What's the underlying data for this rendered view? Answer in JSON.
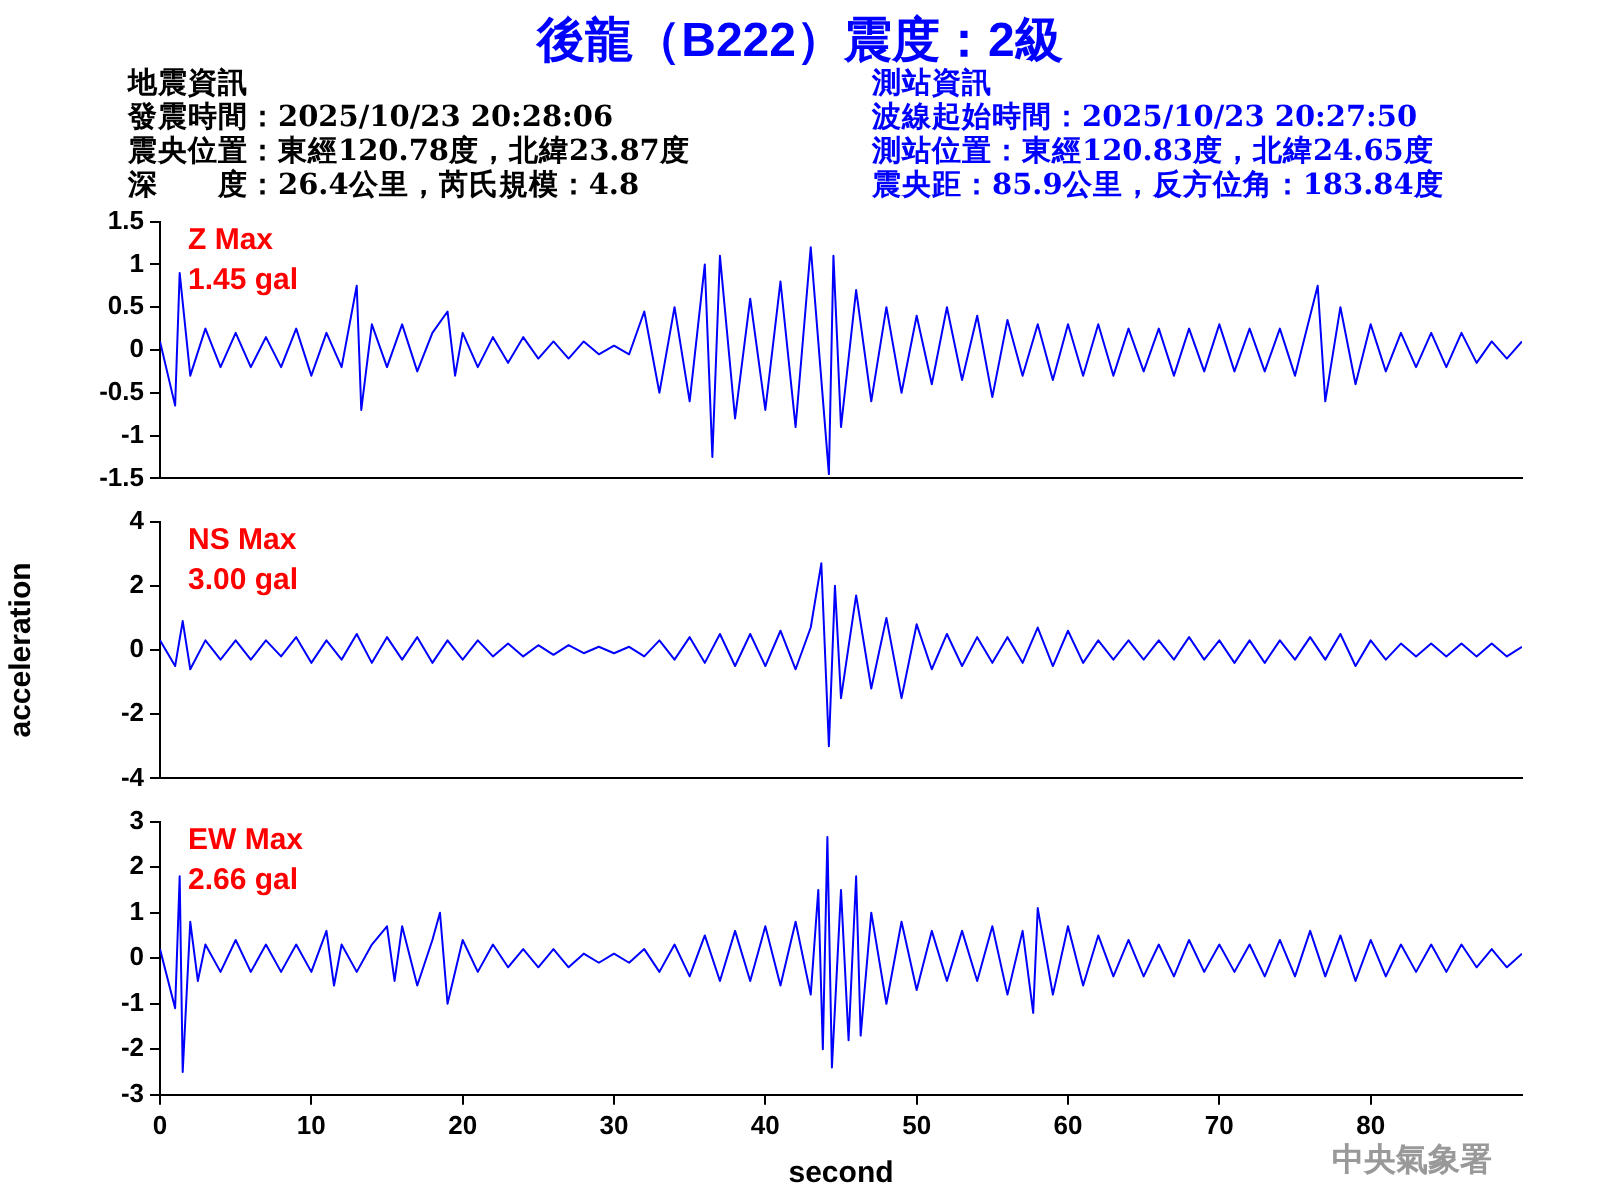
{
  "chart_data": [
    {
      "type": "line",
      "title": "後龍（B222）震度：2級",
      "ylim": [
        -1.5,
        1.5
      ],
      "yticks": [
        -1.5,
        -1,
        -0.5,
        0,
        0.5,
        1,
        1.5
      ],
      "xlim": [
        0,
        90
      ],
      "xticks": [
        0,
        10,
        20,
        30,
        40,
        50,
        60,
        70,
        80
      ],
      "tick_labels": "y",
      "annotations": [
        "Z Max\n1.45 gal",
        "地震資訊",
        "發震時間：2025/10/23 20:28:06",
        "震央位置：東經120.78度，北緯23.87度",
        "深　　度：26.4公里，芮氏規模：4.8",
        "測站資訊",
        "波線起始時間：2025/10/23 20:27:50",
        "測站位置：東經120.83度，北緯24.65度",
        "震央距：85.9公里，反方位角：183.84度"
      ],
      "x": [
        0,
        1,
        1.3,
        2,
        3,
        4,
        5,
        6,
        7,
        8,
        9,
        10,
        11,
        12,
        13,
        13.3,
        14,
        15,
        16,
        17,
        18,
        19,
        19.5,
        20,
        21,
        22,
        23,
        24,
        25,
        26,
        27,
        28,
        29,
        30,
        31,
        32,
        33,
        34,
        35,
        36,
        36.5,
        37,
        38,
        39,
        40,
        41,
        42,
        43,
        44.2,
        44.5,
        45,
        46,
        47,
        48,
        49,
        50,
        51,
        52,
        53,
        54,
        55,
        56,
        57,
        58,
        59,
        60,
        61,
        62,
        63,
        64,
        65,
        66,
        67,
        68,
        69,
        70,
        71,
        72,
        73,
        74,
        75,
        76.5,
        77,
        78,
        79,
        80,
        81,
        82,
        83,
        84,
        85,
        86,
        87,
        88,
        89,
        90
      ],
      "series": [
        {
          "color": "#0000ff",
          "values": [
            0.1,
            -0.65,
            0.9,
            -0.3,
            0.25,
            -0.2,
            0.2,
            -0.2,
            0.15,
            -0.2,
            0.25,
            -0.3,
            0.2,
            -0.2,
            0.75,
            -0.7,
            0.3,
            -0.2,
            0.3,
            -0.25,
            0.2,
            0.45,
            -0.3,
            0.2,
            -0.2,
            0.15,
            -0.15,
            0.15,
            -0.1,
            0.1,
            -0.1,
            0.1,
            -0.05,
            0.05,
            -0.05,
            0.45,
            -0.5,
            0.5,
            -0.6,
            1.0,
            -1.25,
            1.1,
            -0.8,
            0.6,
            -0.7,
            0.8,
            -0.9,
            1.2,
            -1.45,
            1.1,
            -0.9,
            0.7,
            -0.6,
            0.5,
            -0.5,
            0.4,
            -0.4,
            0.5,
            -0.35,
            0.4,
            -0.55,
            0.35,
            -0.3,
            0.3,
            -0.35,
            0.3,
            -0.3,
            0.3,
            -0.3,
            0.25,
            -0.25,
            0.25,
            -0.3,
            0.25,
            -0.25,
            0.3,
            -0.25,
            0.25,
            -0.25,
            0.25,
            -0.3,
            0.75,
            -0.6,
            0.5,
            -0.4,
            0.3,
            -0.25,
            0.2,
            -0.2,
            0.2,
            -0.2,
            0.2,
            -0.15,
            0.1,
            -0.1,
            0.1
          ]
        }
      ]
    },
    {
      "type": "line",
      "ylabel": "acceleration",
      "ylim": [
        -4,
        4
      ],
      "yticks": [
        -4,
        -2,
        0,
        2,
        4
      ],
      "xlim": [
        0,
        90
      ],
      "xticks": [
        0,
        10,
        20,
        30,
        40,
        50,
        60,
        70,
        80
      ],
      "tick_labels": "y",
      "annotations": [
        "NS Max\n3.00 gal"
      ],
      "x": [
        0,
        1,
        1.5,
        2,
        3,
        4,
        5,
        6,
        7,
        8,
        9,
        10,
        11,
        12,
        13,
        14,
        15,
        16,
        17,
        18,
        19,
        20,
        21,
        22,
        23,
        24,
        25,
        26,
        27,
        28,
        29,
        30,
        31,
        32,
        33,
        34,
        35,
        36,
        37,
        38,
        39,
        40,
        41,
        42,
        43,
        43.7,
        44.2,
        44.6,
        45,
        46,
        47,
        48,
        49,
        50,
        51,
        52,
        53,
        54,
        55,
        56,
        57,
        58,
        59,
        60,
        61,
        62,
        63,
        64,
        65,
        66,
        67,
        68,
        69,
        70,
        71,
        72,
        73,
        74,
        75,
        76,
        77,
        78,
        79,
        80,
        81,
        82,
        83,
        84,
        85,
        86,
        87,
        88,
        89,
        90
      ],
      "series": [
        {
          "color": "#0000ff",
          "values": [
            0.3,
            -0.5,
            0.9,
            -0.6,
            0.3,
            -0.3,
            0.3,
            -0.3,
            0.3,
            -0.2,
            0.4,
            -0.4,
            0.3,
            -0.3,
            0.5,
            -0.4,
            0.4,
            -0.3,
            0.4,
            -0.4,
            0.3,
            -0.3,
            0.3,
            -0.2,
            0.2,
            -0.2,
            0.15,
            -0.15,
            0.15,
            -0.1,
            0.1,
            -0.1,
            0.1,
            -0.2,
            0.3,
            -0.3,
            0.4,
            -0.4,
            0.5,
            -0.5,
            0.5,
            -0.5,
            0.6,
            -0.6,
            0.7,
            2.7,
            -3.0,
            2.0,
            -1.5,
            1.7,
            -1.2,
            1.0,
            -1.5,
            0.8,
            -0.6,
            0.5,
            -0.5,
            0.4,
            -0.4,
            0.4,
            -0.4,
            0.7,
            -0.5,
            0.6,
            -0.4,
            0.3,
            -0.3,
            0.3,
            -0.3,
            0.3,
            -0.3,
            0.4,
            -0.3,
            0.3,
            -0.4,
            0.3,
            -0.4,
            0.3,
            -0.3,
            0.4,
            -0.3,
            0.5,
            -0.5,
            0.3,
            -0.3,
            0.2,
            -0.2,
            0.2,
            -0.2,
            0.2,
            -0.2,
            0.2,
            -0.2,
            0.1
          ]
        }
      ]
    },
    {
      "type": "line",
      "xlabel": "second",
      "ylim": [
        -3,
        3
      ],
      "yticks": [
        -3,
        -2,
        -1,
        0,
        1,
        2,
        3
      ],
      "xlim": [
        0,
        90
      ],
      "xticks": [
        0,
        10,
        20,
        30,
        40,
        50,
        60,
        70,
        80
      ],
      "annotations": [
        "EW Max\n2.66 gal",
        "中央氣象署"
      ],
      "x": [
        0,
        1,
        1.3,
        1.5,
        2,
        2.5,
        3,
        4,
        5,
        6,
        7,
        8,
        9,
        10,
        11,
        11.5,
        12,
        13,
        14,
        15,
        15.5,
        16,
        17,
        18,
        18.5,
        19,
        20,
        21,
        22,
        23,
        24,
        25,
        26,
        27,
        28,
        29,
        30,
        31,
        32,
        33,
        34,
        35,
        36,
        37,
        38,
        39,
        40,
        41,
        42,
        43,
        43.5,
        43.8,
        44.1,
        44.4,
        45,
        45.5,
        46,
        46.3,
        47,
        48,
        49,
        50,
        51,
        52,
        53,
        54,
        55,
        56,
        57,
        57.7,
        58,
        59,
        60,
        61,
        62,
        63,
        64,
        65,
        66,
        67,
        68,
        69,
        70,
        71,
        72,
        73,
        74,
        75,
        76,
        77,
        78,
        79,
        80,
        81,
        82,
        83,
        84,
        85,
        86,
        87,
        88,
        89,
        90
      ],
      "series": [
        {
          "color": "#0000ff",
          "values": [
            0.2,
            -1.1,
            1.8,
            -2.5,
            0.8,
            -0.5,
            0.3,
            -0.3,
            0.4,
            -0.3,
            0.3,
            -0.3,
            0.3,
            -0.3,
            0.6,
            -0.6,
            0.3,
            -0.3,
            0.3,
            0.7,
            -0.5,
            0.7,
            -0.6,
            0.4,
            1.0,
            -1.0,
            0.4,
            -0.3,
            0.3,
            -0.2,
            0.2,
            -0.2,
            0.2,
            -0.2,
            0.1,
            -0.1,
            0.1,
            -0.1,
            0.2,
            -0.3,
            0.3,
            -0.4,
            0.5,
            -0.5,
            0.6,
            -0.5,
            0.7,
            -0.6,
            0.8,
            -0.8,
            1.5,
            -2.0,
            2.66,
            -2.4,
            1.5,
            -1.8,
            1.8,
            -1.7,
            1.0,
            -1.0,
            0.8,
            -0.7,
            0.6,
            -0.5,
            0.6,
            -0.5,
            0.7,
            -0.8,
            0.6,
            -1.2,
            1.1,
            -0.8,
            0.7,
            -0.6,
            0.5,
            -0.4,
            0.4,
            -0.4,
            0.3,
            -0.4,
            0.4,
            -0.3,
            0.3,
            -0.3,
            0.3,
            -0.4,
            0.4,
            -0.4,
            0.6,
            -0.4,
            0.5,
            -0.5,
            0.4,
            -0.4,
            0.3,
            -0.3,
            0.3,
            -0.3,
            0.3,
            -0.2,
            0.2,
            -0.2,
            0.1
          ]
        }
      ]
    }
  ]
}
